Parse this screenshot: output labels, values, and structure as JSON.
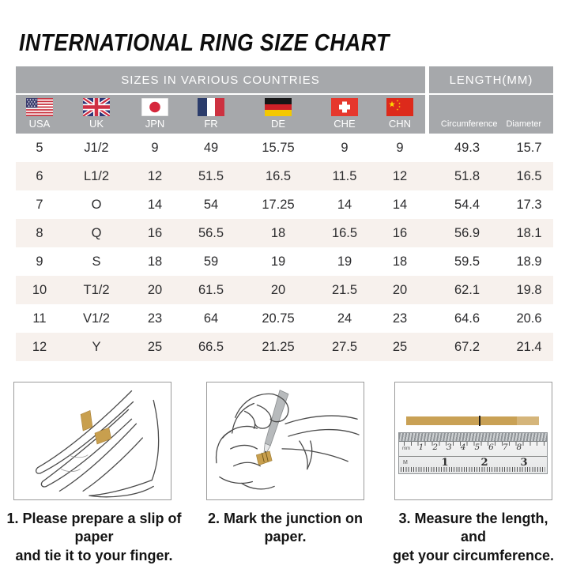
{
  "title": "INTERNATIONAL RING SIZE CHART",
  "table": {
    "group_headers": {
      "countries": "SIZES IN VARIOUS COUNTRIES",
      "length": "LENGTH(MM)"
    },
    "countries": [
      {
        "code": "USA"
      },
      {
        "code": "UK"
      },
      {
        "code": "JPN"
      },
      {
        "code": "FR"
      },
      {
        "code": "DE"
      },
      {
        "code": "CHE"
      },
      {
        "code": "CHN"
      }
    ],
    "length_headers": {
      "circumference": "Circumference",
      "diameter": "Diameter"
    }
  },
  "chart_data": {
    "type": "table",
    "title": "INTERNATIONAL RING SIZE CHART",
    "column_groups": [
      {
        "label": "SIZES IN VARIOUS COUNTRIES",
        "columns": [
          "USA",
          "UK",
          "JPN",
          "FR",
          "DE",
          "CHE",
          "CHN"
        ]
      },
      {
        "label": "LENGTH(MM)",
        "columns": [
          "Circumference",
          "Diameter"
        ]
      }
    ],
    "columns": [
      "USA",
      "UK",
      "JPN",
      "FR",
      "DE",
      "CHE",
      "CHN",
      "Circumference",
      "Diameter"
    ],
    "rows": [
      [
        "5",
        "J1/2",
        "9",
        "49",
        "15.75",
        "9",
        "9",
        "49.3",
        "15.7"
      ],
      [
        "6",
        "L1/2",
        "12",
        "51.5",
        "16.5",
        "11.5",
        "12",
        "51.8",
        "16.5"
      ],
      [
        "7",
        "O",
        "14",
        "54",
        "17.25",
        "14",
        "14",
        "54.4",
        "17.3"
      ],
      [
        "8",
        "Q",
        "16",
        "56.5",
        "18",
        "16.5",
        "16",
        "56.9",
        "18.1"
      ],
      [
        "9",
        "S",
        "18",
        "59",
        "19",
        "19",
        "18",
        "59.5",
        "18.9"
      ],
      [
        "10",
        "T1/2",
        "20",
        "61.5",
        "20",
        "21.5",
        "20",
        "62.1",
        "19.8"
      ],
      [
        "11",
        "V1/2",
        "23",
        "64",
        "20.75",
        "24",
        "23",
        "64.6",
        "20.6"
      ],
      [
        "12",
        "Y",
        "25",
        "66.5",
        "21.25",
        "27.5",
        "25",
        "67.2",
        "21.4"
      ]
    ]
  },
  "steps": [
    {
      "lines": [
        "1. Please prepare a slip of paper",
        "and tie it to your finger."
      ]
    },
    {
      "lines": [
        "2. Mark the junction on paper."
      ]
    },
    {
      "lines": [
        "3. Measure the length, and",
        "get your circumference."
      ]
    }
  ],
  "ruler": {
    "cm_numbers": [
      "1",
      "2",
      "3",
      "4",
      "5",
      "6",
      "7",
      "8"
    ],
    "inch_numbers": [
      "1",
      "2",
      "3"
    ],
    "unit_top": "mm",
    "unit_bottom": "M"
  },
  "colors": {
    "header_gray": "#a6a8ab",
    "alt_row": "#f7f1ed",
    "paper_strip_gold": "#c9a155",
    "title_black": "#0d0d0d"
  }
}
